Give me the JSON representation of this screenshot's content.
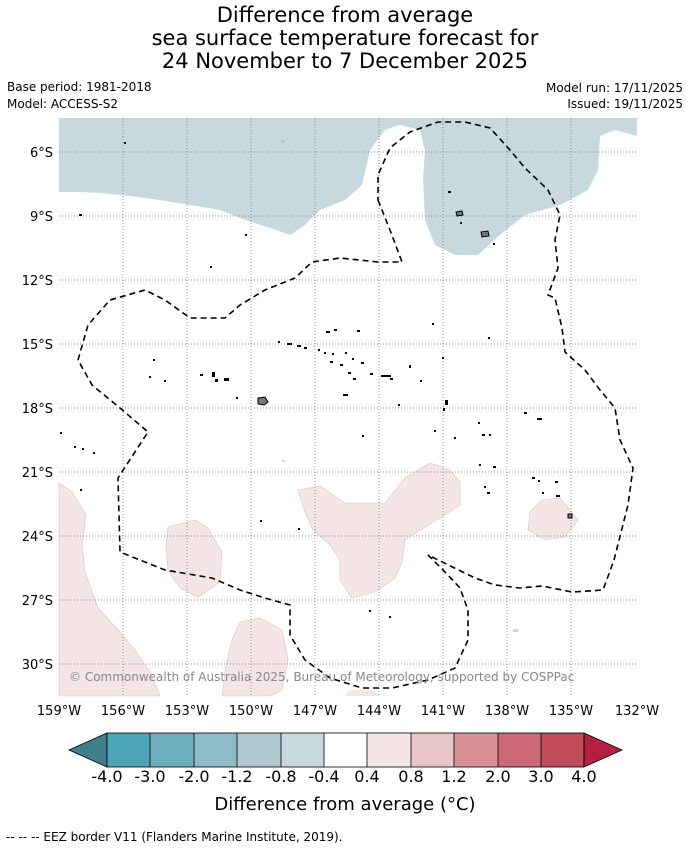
{
  "title": {
    "line1": "Difference from average",
    "line2": "sea surface temperature forecast for",
    "line3": "24 November to 7 December 2025"
  },
  "meta": {
    "base_period": "Base period: 1981-2018",
    "model": "Model: ACCESS-S2",
    "model_run": "Model run: 17/11/2025",
    "issued": "Issued: 19/11/2025"
  },
  "map": {
    "copyright": "© Commonwealth of Australia 2025, Bureau of Meteorology, supported by COSPPac",
    "lat_labels": [
      "6°S",
      "9°S",
      "12°S",
      "15°S",
      "18°S",
      "21°S",
      "24°S",
      "27°S",
      "30°S"
    ],
    "lon_labels": [
      "159°W",
      "156°W",
      "153°W",
      "150°W",
      "147°W",
      "144°W",
      "141°W",
      "138°W",
      "135°W",
      "132°W"
    ],
    "lat_range": [
      -31.5,
      -4.5
    ],
    "lon_range": [
      -159,
      -132
    ]
  },
  "legend": {
    "ticks": [
      "-4.0",
      "-3.0",
      "-2.0",
      "-1.2",
      "-0.8",
      "-0.4",
      "0.4",
      "0.8",
      "1.2",
      "2.0",
      "3.0",
      "4.0"
    ],
    "colors": [
      "#4ba5b5",
      "#6cb0bf",
      "#8dbcc7",
      "#aec8ce",
      "#c7d9de",
      "#ffffff",
      "#f4e5e6",
      "#e8c6c7",
      "#d99095",
      "#cd6876",
      "#c04b5b"
    ],
    "low_extend_color": "#3f7f8a",
    "high_extend_color": "#b52040",
    "label": "Difference from average (°C)"
  },
  "footer": {
    "text": "--  --  -- EEZ border V11 (Flanders Marine Institute, 2019)."
  }
}
